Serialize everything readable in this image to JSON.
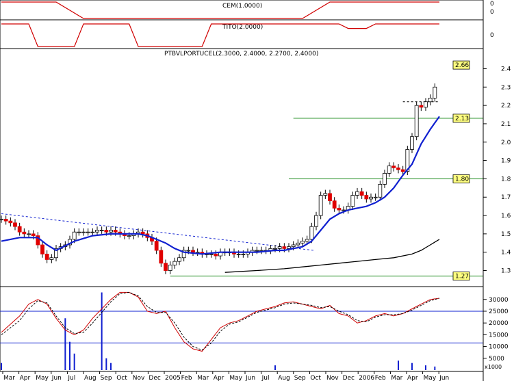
{
  "chart_data": [
    {
      "type": "line",
      "title": "CEM(1.0000)",
      "ylabel": "",
      "yticks": [
        "0",
        "0"
      ],
      "x": [
        0,
        6,
        12,
        18,
        24,
        30,
        36,
        42,
        48,
        54,
        60,
        66,
        72,
        78,
        84,
        90,
        96
      ],
      "series": [
        {
          "color": "#d00000",
          "values": [
            1,
            1,
            1,
            0,
            0,
            0,
            0,
            0,
            0,
            0,
            0,
            0,
            1,
            1,
            1,
            1,
            1
          ]
        }
      ]
    },
    {
      "type": "line",
      "title": "TITO(2.0000)",
      "yticks": [
        "0"
      ],
      "x": [
        0,
        6,
        8,
        16,
        18,
        28,
        30,
        44,
        46,
        74,
        76,
        80,
        82,
        96
      ],
      "series": [
        {
          "color": "#d00000",
          "values": [
            1,
            1,
            0,
            0,
            1,
            1,
            0,
            0,
            1,
            1,
            0.8,
            0.8,
            1,
            1
          ]
        }
      ]
    },
    {
      "type": "candlestick",
      "title": "PTBVLPORTUCEL(2.3000, 2.4000, 2.2700, 2.4000)",
      "ylim": [
        1.22,
        2.48
      ],
      "yticks": [
        "2.4",
        "2.3",
        "2.2",
        "2.1",
        "2.0",
        "1.9",
        "1.8",
        "1.7",
        "1.6",
        "1.5",
        "1.4",
        "1.3"
      ],
      "xticks": [
        "Mar",
        "Apr",
        "May",
        "Jun",
        "Jul",
        "Aug",
        "Sep",
        "Oct",
        "Nov",
        "Dec",
        "2005",
        "Feb",
        "Mar",
        "Apr",
        "May",
        "Jun",
        "Jul",
        "Aug",
        "Sep",
        "Oct",
        "Nov",
        "Dec",
        "2006",
        "Feb",
        "Mar",
        "Apr",
        "May",
        "Jun"
      ],
      "price_labels": [
        "2.66",
        "2.13",
        "1.80",
        "1.27"
      ],
      "horizontal_levels": [
        {
          "value": 2.13,
          "x_start": 64
        },
        {
          "value": 1.8,
          "x_start": 63
        },
        {
          "value": 1.27,
          "x_start": 37
        }
      ],
      "resistance_dashed": {
        "x": [
          0,
          68.5
        ],
        "y": [
          1.61,
          1.41
        ]
      },
      "top_dashed": {
        "x": [
          88,
          96
        ],
        "y": [
          2.22,
          2.22
        ]
      },
      "candles_x": [
        0,
        1,
        2,
        3,
        4,
        5,
        6,
        7,
        8,
        9,
        10,
        11,
        12,
        13,
        14,
        15,
        16,
        17,
        18,
        19,
        20,
        21,
        22,
        23,
        24,
        25,
        26,
        27,
        28,
        29,
        30,
        31,
        32,
        33,
        34,
        35,
        36,
        37,
        38,
        39,
        40,
        41,
        42,
        43,
        44,
        45,
        46,
        47,
        48,
        49,
        50,
        51,
        52,
        53,
        54,
        55,
        56,
        57,
        58,
        59,
        60,
        61,
        62,
        63,
        64,
        65,
        66,
        67,
        68,
        69,
        70,
        71,
        72,
        73,
        74,
        75,
        76,
        77,
        78,
        79,
        80,
        81,
        82,
        83,
        84,
        85,
        86,
        87,
        88,
        89,
        90,
        91,
        92,
        93,
        94,
        95
      ],
      "close": [
        1.58,
        1.57,
        1.56,
        1.54,
        1.51,
        1.5,
        1.5,
        1.49,
        1.44,
        1.39,
        1.36,
        1.37,
        1.42,
        1.43,
        1.44,
        1.47,
        1.51,
        1.51,
        1.51,
        1.51,
        1.51,
        1.52,
        1.52,
        1.51,
        1.52,
        1.51,
        1.5,
        1.49,
        1.49,
        1.5,
        1.51,
        1.5,
        1.48,
        1.46,
        1.41,
        1.34,
        1.3,
        1.33,
        1.35,
        1.37,
        1.41,
        1.41,
        1.4,
        1.4,
        1.39,
        1.39,
        1.39,
        1.38,
        1.4,
        1.4,
        1.4,
        1.39,
        1.39,
        1.39,
        1.4,
        1.41,
        1.41,
        1.41,
        1.41,
        1.42,
        1.42,
        1.43,
        1.42,
        1.43,
        1.44,
        1.45,
        1.46,
        1.47,
        1.54,
        1.6,
        1.71,
        1.72,
        1.68,
        1.64,
        1.63,
        1.63,
        1.65,
        1.71,
        1.73,
        1.71,
        1.69,
        1.7,
        1.7,
        1.77,
        1.83,
        1.87,
        1.86,
        1.85,
        1.84,
        1.96,
        2.03,
        2.2,
        2.19,
        2.22,
        2.24,
        2.3
      ],
      "ma_fast": {
        "color": "#1020d0",
        "x": [
          0,
          4,
          8,
          10,
          12,
          16,
          20,
          24,
          26,
          28,
          30,
          32,
          34,
          36,
          38,
          40,
          44,
          48,
          52,
          56,
          60,
          62,
          64,
          66,
          68,
          70,
          72,
          74,
          76,
          78,
          80,
          82,
          84,
          86,
          88,
          90,
          92,
          94,
          96
        ],
        "y": [
          1.46,
          1.48,
          1.48,
          1.44,
          1.41,
          1.46,
          1.49,
          1.5,
          1.5,
          1.5,
          1.5,
          1.49,
          1.47,
          1.45,
          1.42,
          1.4,
          1.39,
          1.4,
          1.4,
          1.4,
          1.41,
          1.41,
          1.42,
          1.43,
          1.46,
          1.52,
          1.58,
          1.61,
          1.63,
          1.64,
          1.65,
          1.67,
          1.7,
          1.75,
          1.82,
          1.88,
          1.99,
          2.07,
          2.14
        ]
      },
      "ma_slow": {
        "color": "#000000",
        "x": [
          49,
          56,
          62,
          66,
          70,
          74,
          78,
          82,
          86,
          90,
          92,
          94,
          96
        ],
        "y": [
          1.29,
          1.3,
          1.31,
          1.32,
          1.33,
          1.34,
          1.35,
          1.36,
          1.37,
          1.39,
          1.41,
          1.44,
          1.47
        ]
      }
    },
    {
      "type": "line",
      "title": "",
      "yticks": [
        "30000",
        "25000",
        "20000",
        "15000",
        "10000",
        "5000",
        "x1000"
      ],
      "horizontal_levels": [
        25000,
        11500
      ],
      "series": [
        {
          "name": "",
          "color": "#d00000",
          "x": [
            0,
            4,
            6,
            8,
            10,
            12,
            14,
            16,
            18,
            20,
            22,
            24,
            26,
            28,
            30,
            32,
            34,
            36,
            38,
            40,
            42,
            44,
            46,
            48,
            50,
            52,
            54,
            56,
            58,
            60,
            62,
            64,
            66,
            68,
            70,
            72,
            74,
            76,
            78,
            80,
            82,
            84,
            86,
            88,
            90,
            92,
            94,
            96
          ],
          "y": [
            16000,
            23000,
            28000,
            30000,
            28000,
            22000,
            17000,
            15000,
            17000,
            22000,
            26000,
            30000,
            33000,
            33000,
            31000,
            25000,
            24000,
            25000,
            18000,
            12000,
            9000,
            8000,
            13000,
            18000,
            20000,
            21000,
            23000,
            25000,
            26000,
            27000,
            28500,
            29000,
            28000,
            27000,
            26000,
            27500,
            24000,
            23000,
            20000,
            21000,
            23000,
            24000,
            23000,
            24000,
            26000,
            28000,
            30000,
            30500
          ]
        },
        {
          "name": "",
          "color": "#000000",
          "x": [
            0,
            4,
            6,
            8,
            10,
            12,
            14,
            16,
            18,
            20,
            22,
            24,
            26,
            28,
            30,
            32,
            34,
            36,
            38,
            40,
            42,
            44,
            46,
            48,
            50,
            52,
            54,
            56,
            58,
            60,
            62,
            64,
            66,
            68,
            70,
            72,
            74,
            76,
            78,
            80,
            82,
            84,
            86,
            88,
            90,
            92,
            94,
            96
          ],
          "y": [
            15000,
            21000,
            26000,
            29500,
            28500,
            23000,
            18000,
            15500,
            16000,
            20000,
            24500,
            29000,
            32500,
            33000,
            31500,
            27000,
            24500,
            24500,
            20000,
            14000,
            10000,
            8500,
            11500,
            16500,
            19500,
            20500,
            22500,
            24500,
            25500,
            26500,
            28000,
            28500,
            28000,
            27500,
            26500,
            27000,
            25000,
            23500,
            21000,
            20500,
            22500,
            23500,
            23500,
            24000,
            25500,
            27500,
            29500,
            30500
          ]
        }
      ],
      "volume_bars": {
        "color": "#1020d0",
        "x": [
          0,
          14,
          15,
          16,
          22,
          23,
          24,
          60,
          87,
          90,
          93,
          95
        ],
        "values": [
          3000,
          22000,
          12000,
          7000,
          33000,
          5000,
          3000,
          2000,
          4000,
          3000,
          2000,
          1500
        ]
      }
    }
  ]
}
